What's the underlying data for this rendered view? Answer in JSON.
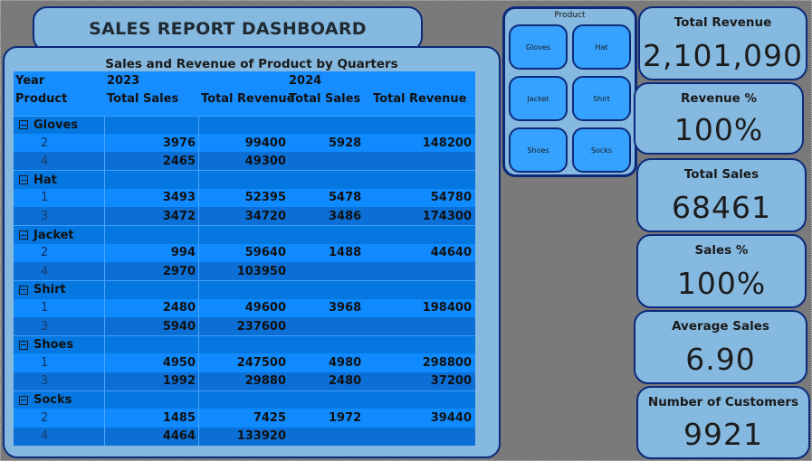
{
  "dashboard": {
    "title": "SALES REPORT DASHBOARD"
  },
  "matrix": {
    "title": "Sales and Revenue of Product by Quarters",
    "header_year_label": "Year",
    "years": [
      "2023",
      "2024"
    ],
    "header_product_label": "Product",
    "measures": [
      "Total Sales",
      "Total Revenue",
      "Total Sales",
      "Total Revenue"
    ],
    "groups": [
      {
        "name": "Gloves",
        "rows": [
          {
            "q": "2",
            "s2023": "3976",
            "r2023": "99400",
            "s2024": "5928",
            "r2024": "148200"
          },
          {
            "q": "4",
            "s2023": "2465",
            "r2023": "49300",
            "s2024": "",
            "r2024": ""
          }
        ]
      },
      {
        "name": "Hat",
        "rows": [
          {
            "q": "1",
            "s2023": "3493",
            "r2023": "52395",
            "s2024": "5478",
            "r2024": "54780"
          },
          {
            "q": "3",
            "s2023": "3472",
            "r2023": "34720",
            "s2024": "3486",
            "r2024": "174300"
          }
        ]
      },
      {
        "name": "Jacket",
        "rows": [
          {
            "q": "2",
            "s2023": "994",
            "r2023": "59640",
            "s2024": "1488",
            "r2024": "44640"
          },
          {
            "q": "4",
            "s2023": "2970",
            "r2023": "103950",
            "s2024": "",
            "r2024": ""
          }
        ]
      },
      {
        "name": "Shirt",
        "rows": [
          {
            "q": "1",
            "s2023": "2480",
            "r2023": "49600",
            "s2024": "3968",
            "r2024": "198400"
          },
          {
            "q": "3",
            "s2023": "5940",
            "r2023": "237600",
            "s2024": "",
            "r2024": ""
          }
        ]
      },
      {
        "name": "Shoes",
        "rows": [
          {
            "q": "1",
            "s2023": "4950",
            "r2023": "247500",
            "s2024": "4980",
            "r2024": "298800"
          },
          {
            "q": "3",
            "s2023": "1992",
            "r2023": "29880",
            "s2024": "2480",
            "r2024": "37200"
          }
        ]
      },
      {
        "name": "Socks",
        "rows": [
          {
            "q": "2",
            "s2023": "1485",
            "r2023": "7425",
            "s2024": "1972",
            "r2024": "39440"
          },
          {
            "q": "4",
            "s2023": "4464",
            "r2023": "133920",
            "s2024": "",
            "r2024": ""
          }
        ]
      }
    ]
  },
  "slicer": {
    "title": "Product",
    "options": [
      "Gloves",
      "Hat",
      "Jacket",
      "Shirt",
      "Shoes",
      "Socks"
    ]
  },
  "kpis": {
    "total_revenue": {
      "label": "Total Revenue",
      "value": "2,101,090"
    },
    "revenue_pct": {
      "label": "Revenue %",
      "value": "100%"
    },
    "total_sales": {
      "label": "Total Sales",
      "value": "68461"
    },
    "sales_pct": {
      "label": "Sales %",
      "value": "100%"
    },
    "avg_sales": {
      "label": "Average Sales",
      "value": "6.90"
    },
    "customers": {
      "label": "Number of Customers",
      "value": "9921"
    }
  },
  "colors": {
    "panel": "#86b9e0",
    "border": "#0d2a7a",
    "table_header": "#168dff",
    "row_alt": "#0b6fd6",
    "canvas": "#7a7a7a"
  }
}
